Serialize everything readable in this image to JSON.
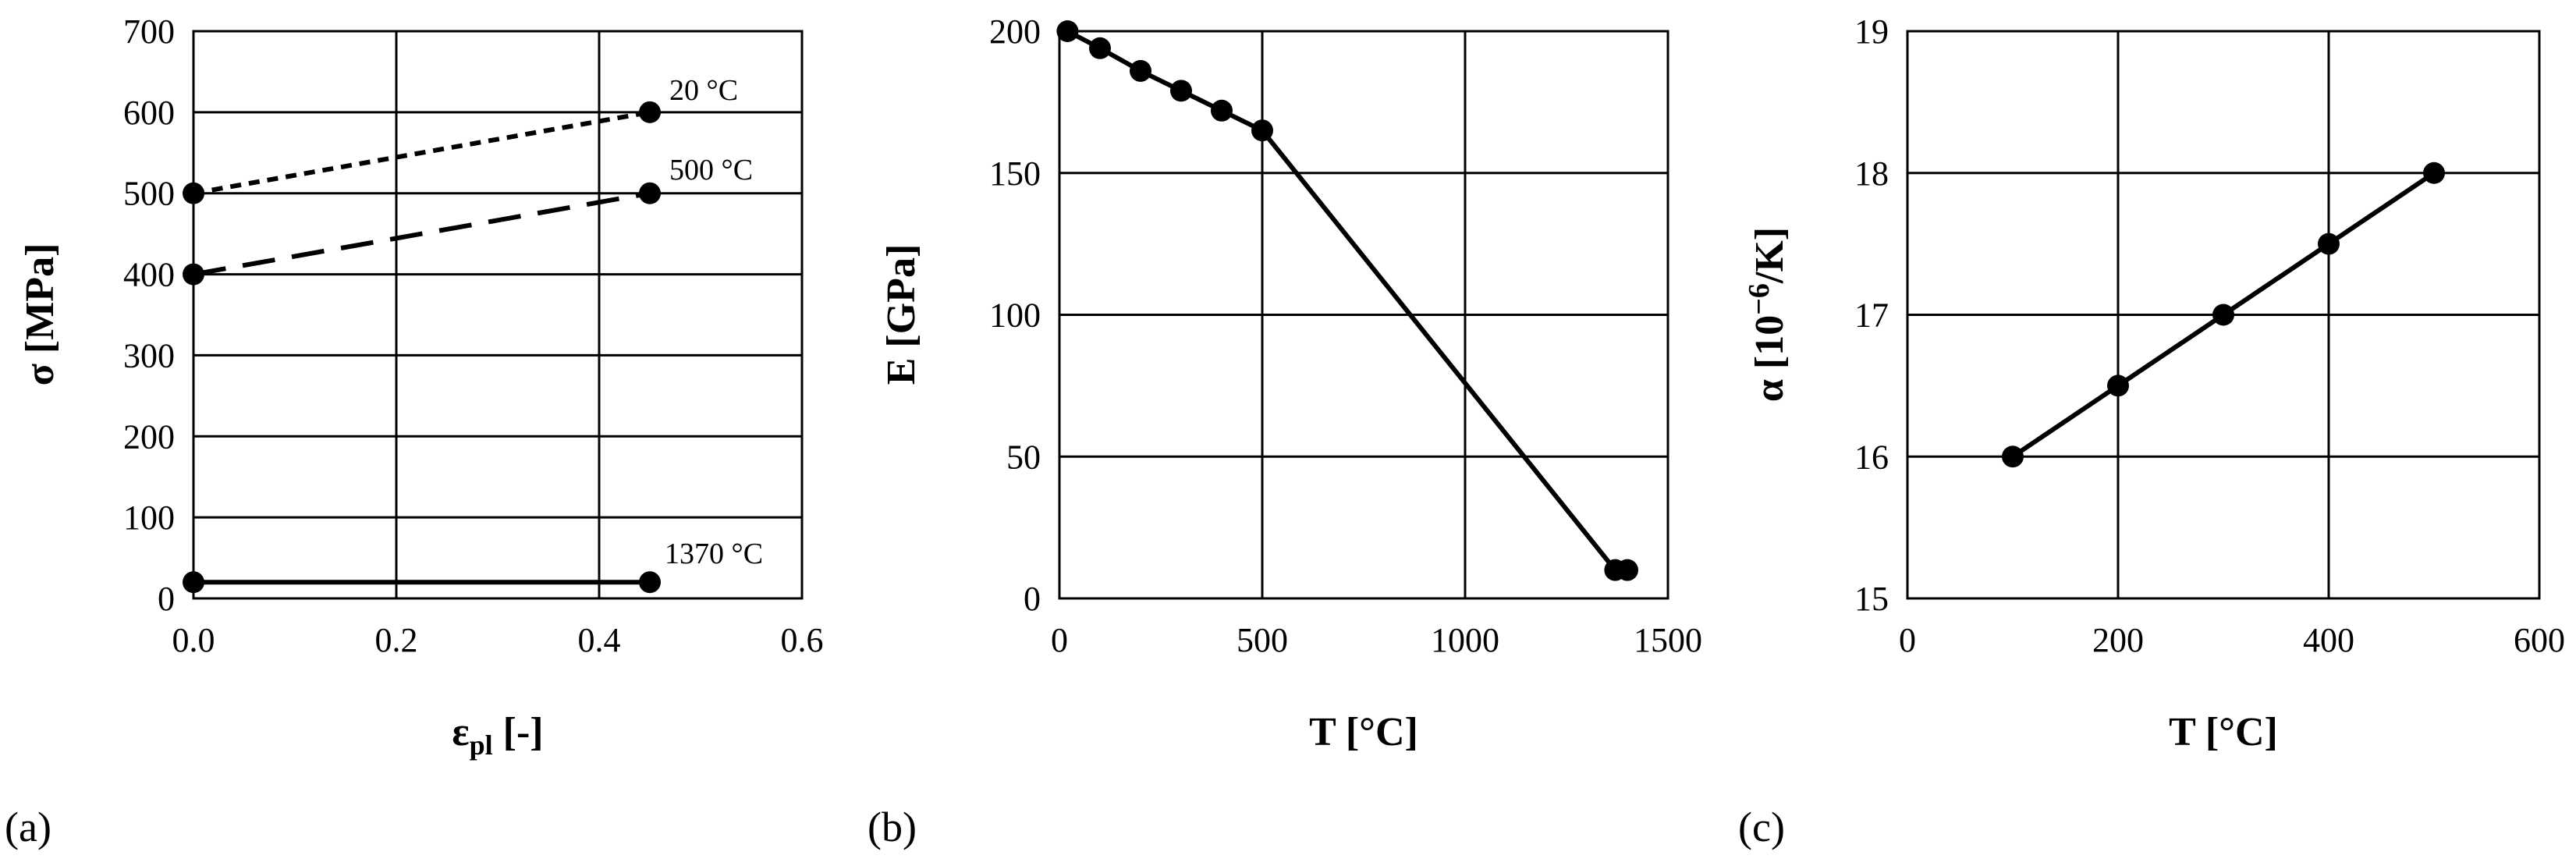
{
  "chart_data": [
    {
      "type": "line",
      "panel_label": "(a)",
      "xlabel_main": "ε",
      "xlabel_sub": "pl",
      "xlabel_tail": " [-]",
      "ylabel": "σ [MPa]",
      "xlim": [
        0,
        0.6
      ],
      "ylim": [
        0,
        700
      ],
      "x_ticks": [
        0.0,
        0.2,
        0.4,
        0.6
      ],
      "x_tick_labels": [
        "0.0",
        "0.2",
        "0.4",
        "0.6"
      ],
      "y_ticks": [
        0,
        100,
        200,
        300,
        400,
        500,
        600,
        700
      ],
      "y_tick_labels": [
        "0",
        "100",
        "200",
        "300",
        "400",
        "500",
        "600",
        "700"
      ],
      "grid": true,
      "series": [
        {
          "name": "20 °C",
          "style": "dotted",
          "x": [
            0.0,
            0.45
          ],
          "y": [
            500,
            600
          ]
        },
        {
          "name": "500 °C",
          "style": "dashed",
          "x": [
            0.0,
            0.45
          ],
          "y": [
            400,
            500
          ]
        },
        {
          "name": "1370 °C",
          "style": "solid",
          "x": [
            0.0,
            0.45
          ],
          "y": [
            20,
            20
          ]
        }
      ]
    },
    {
      "type": "line",
      "panel_label": "(b)",
      "xlabel": "T [°C]",
      "ylabel": "E [GPa]",
      "xlim": [
        0,
        1500
      ],
      "ylim": [
        0,
        200
      ],
      "x_ticks": [
        0,
        500,
        1000,
        1500
      ],
      "x_tick_labels": [
        "0",
        "500",
        "1000",
        "1500"
      ],
      "y_ticks": [
        0,
        50,
        100,
        150,
        200
      ],
      "y_tick_labels": [
        "0",
        "50",
        "100",
        "150",
        "200"
      ],
      "grid": true,
      "series": [
        {
          "style": "solid",
          "x": [
            20,
            100,
            200,
            300,
            400,
            500,
            1370,
            1400
          ],
          "y": [
            200,
            194,
            186,
            179,
            172,
            165,
            10,
            10
          ]
        }
      ]
    },
    {
      "type": "line",
      "panel_label": "(c)",
      "xlabel": "T [°C]",
      "ylabel_main": "α [10",
      "ylabel_sup": "−6",
      "ylabel_tail": "/K]",
      "xlim": [
        0,
        600
      ],
      "ylim": [
        15,
        19
      ],
      "x_ticks": [
        0,
        200,
        400,
        600
      ],
      "x_tick_labels": [
        "0",
        "200",
        "400",
        "600"
      ],
      "y_ticks": [
        15,
        16,
        17,
        18,
        19
      ],
      "y_tick_labels": [
        "15",
        "16",
        "17",
        "18",
        "19"
      ],
      "grid": true,
      "series": [
        {
          "style": "solid",
          "x": [
            100,
            200,
            300,
            400,
            500
          ],
          "y": [
            16,
            16.5,
            17,
            17.5,
            18
          ]
        }
      ]
    }
  ]
}
